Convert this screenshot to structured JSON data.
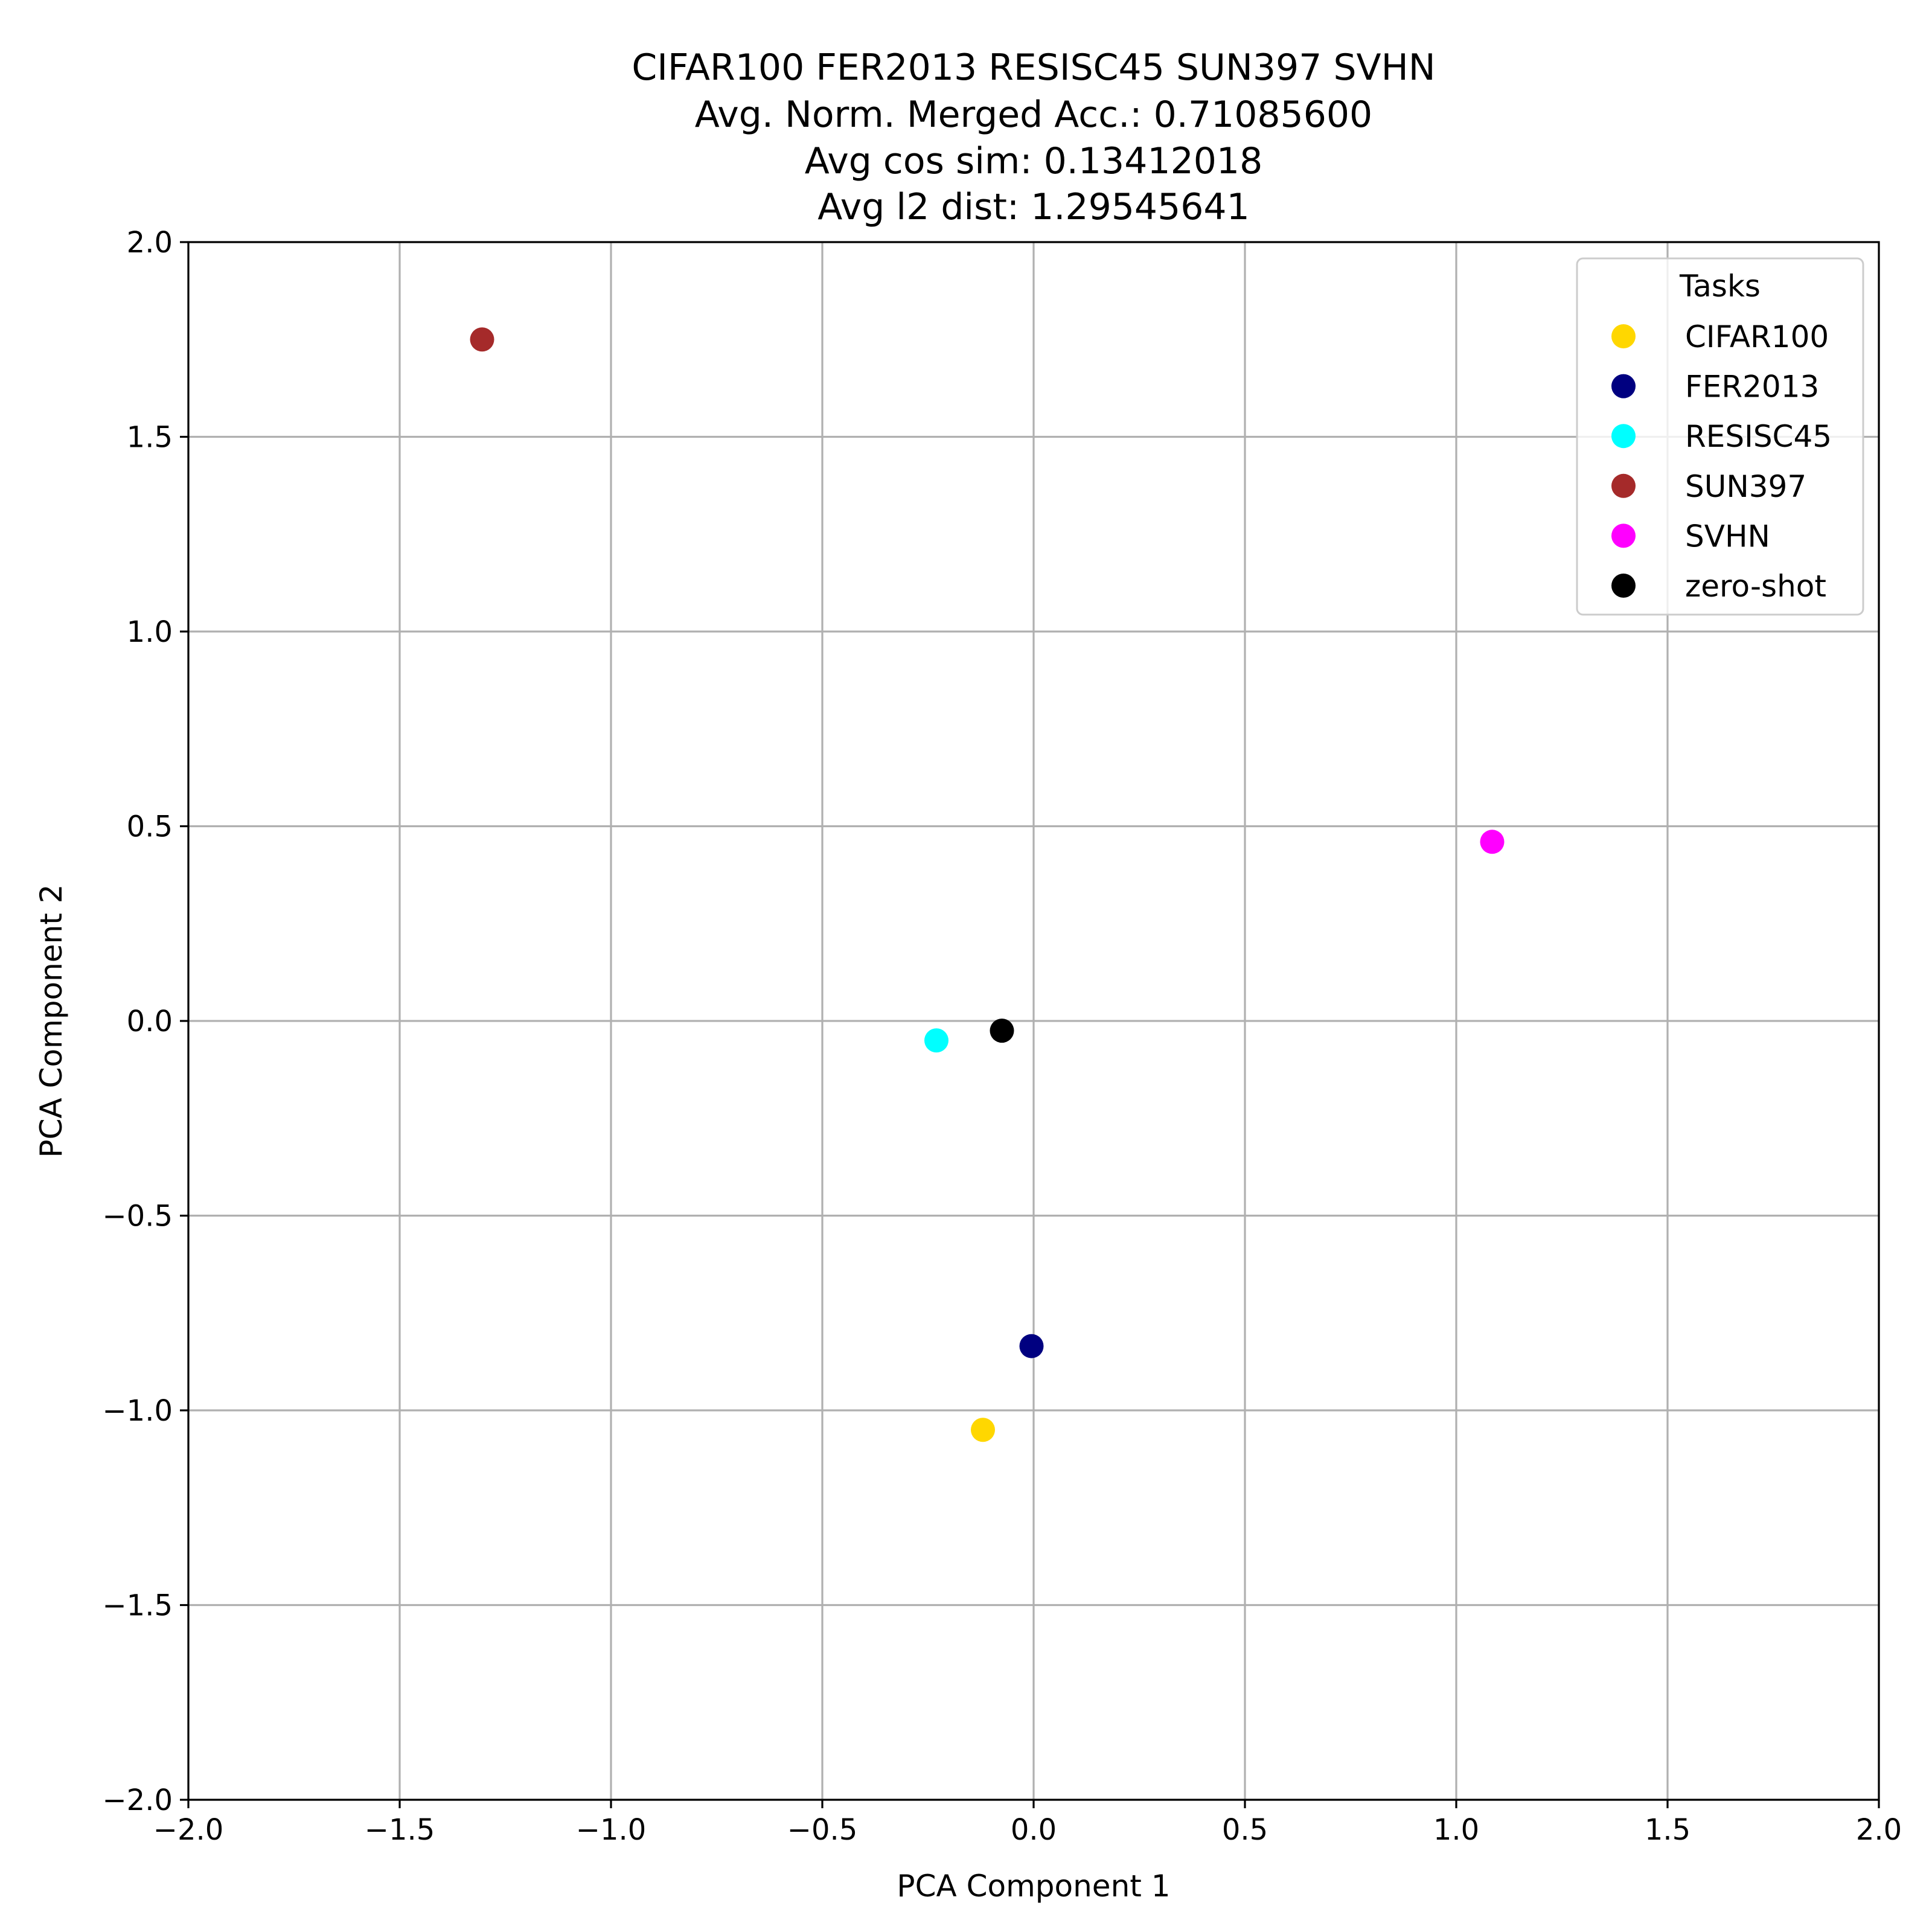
{
  "chart_data": {
    "type": "scatter",
    "title_lines": [
      "CIFAR100 FER2013 RESISC45 SUN397 SVHN",
      "Avg. Norm. Merged Acc.: 0.71085600",
      "Avg cos sim: 0.13412018",
      "Avg l2 dist: 1.29545641"
    ],
    "xlabel": "PCA Component 1",
    "ylabel": "PCA Component 2",
    "xlim": [
      -2.0,
      2.0
    ],
    "ylim": [
      -2.0,
      2.0
    ],
    "xticks": [
      -2.0,
      -1.5,
      -1.0,
      -0.5,
      0.0,
      0.5,
      1.0,
      1.5,
      2.0
    ],
    "yticks": [
      -2.0,
      -1.5,
      -1.0,
      -0.5,
      0.0,
      0.5,
      1.0,
      1.5,
      2.0
    ],
    "xtick_labels": [
      "−2.0",
      "−1.5",
      "−1.0",
      "−0.5",
      "0.0",
      "0.5",
      "1.0",
      "1.5",
      "2.0"
    ],
    "ytick_labels": [
      "−2.0",
      "−1.5",
      "−1.0",
      "−0.5",
      "0.0",
      "0.5",
      "1.0",
      "1.5",
      "2.0"
    ],
    "grid": true,
    "legend_title": "Tasks",
    "legend_position": "top-right",
    "series": [
      {
        "name": "CIFAR100",
        "color": "#FFD700",
        "x": -0.12,
        "y": -1.05
      },
      {
        "name": "FER2013",
        "color": "#000080",
        "x": -0.005,
        "y": -0.835
      },
      {
        "name": "RESISC45",
        "color": "#00FFFF",
        "x": -0.23,
        "y": -0.05
      },
      {
        "name": "SUN397",
        "color": "#A52A2A",
        "x": -1.305,
        "y": 1.75
      },
      {
        "name": "SVHN",
        "color": "#FF00FF",
        "x": 1.085,
        "y": 0.46
      },
      {
        "name": "zero-shot",
        "color": "#000000",
        "x": -0.075,
        "y": -0.025
      }
    ]
  }
}
